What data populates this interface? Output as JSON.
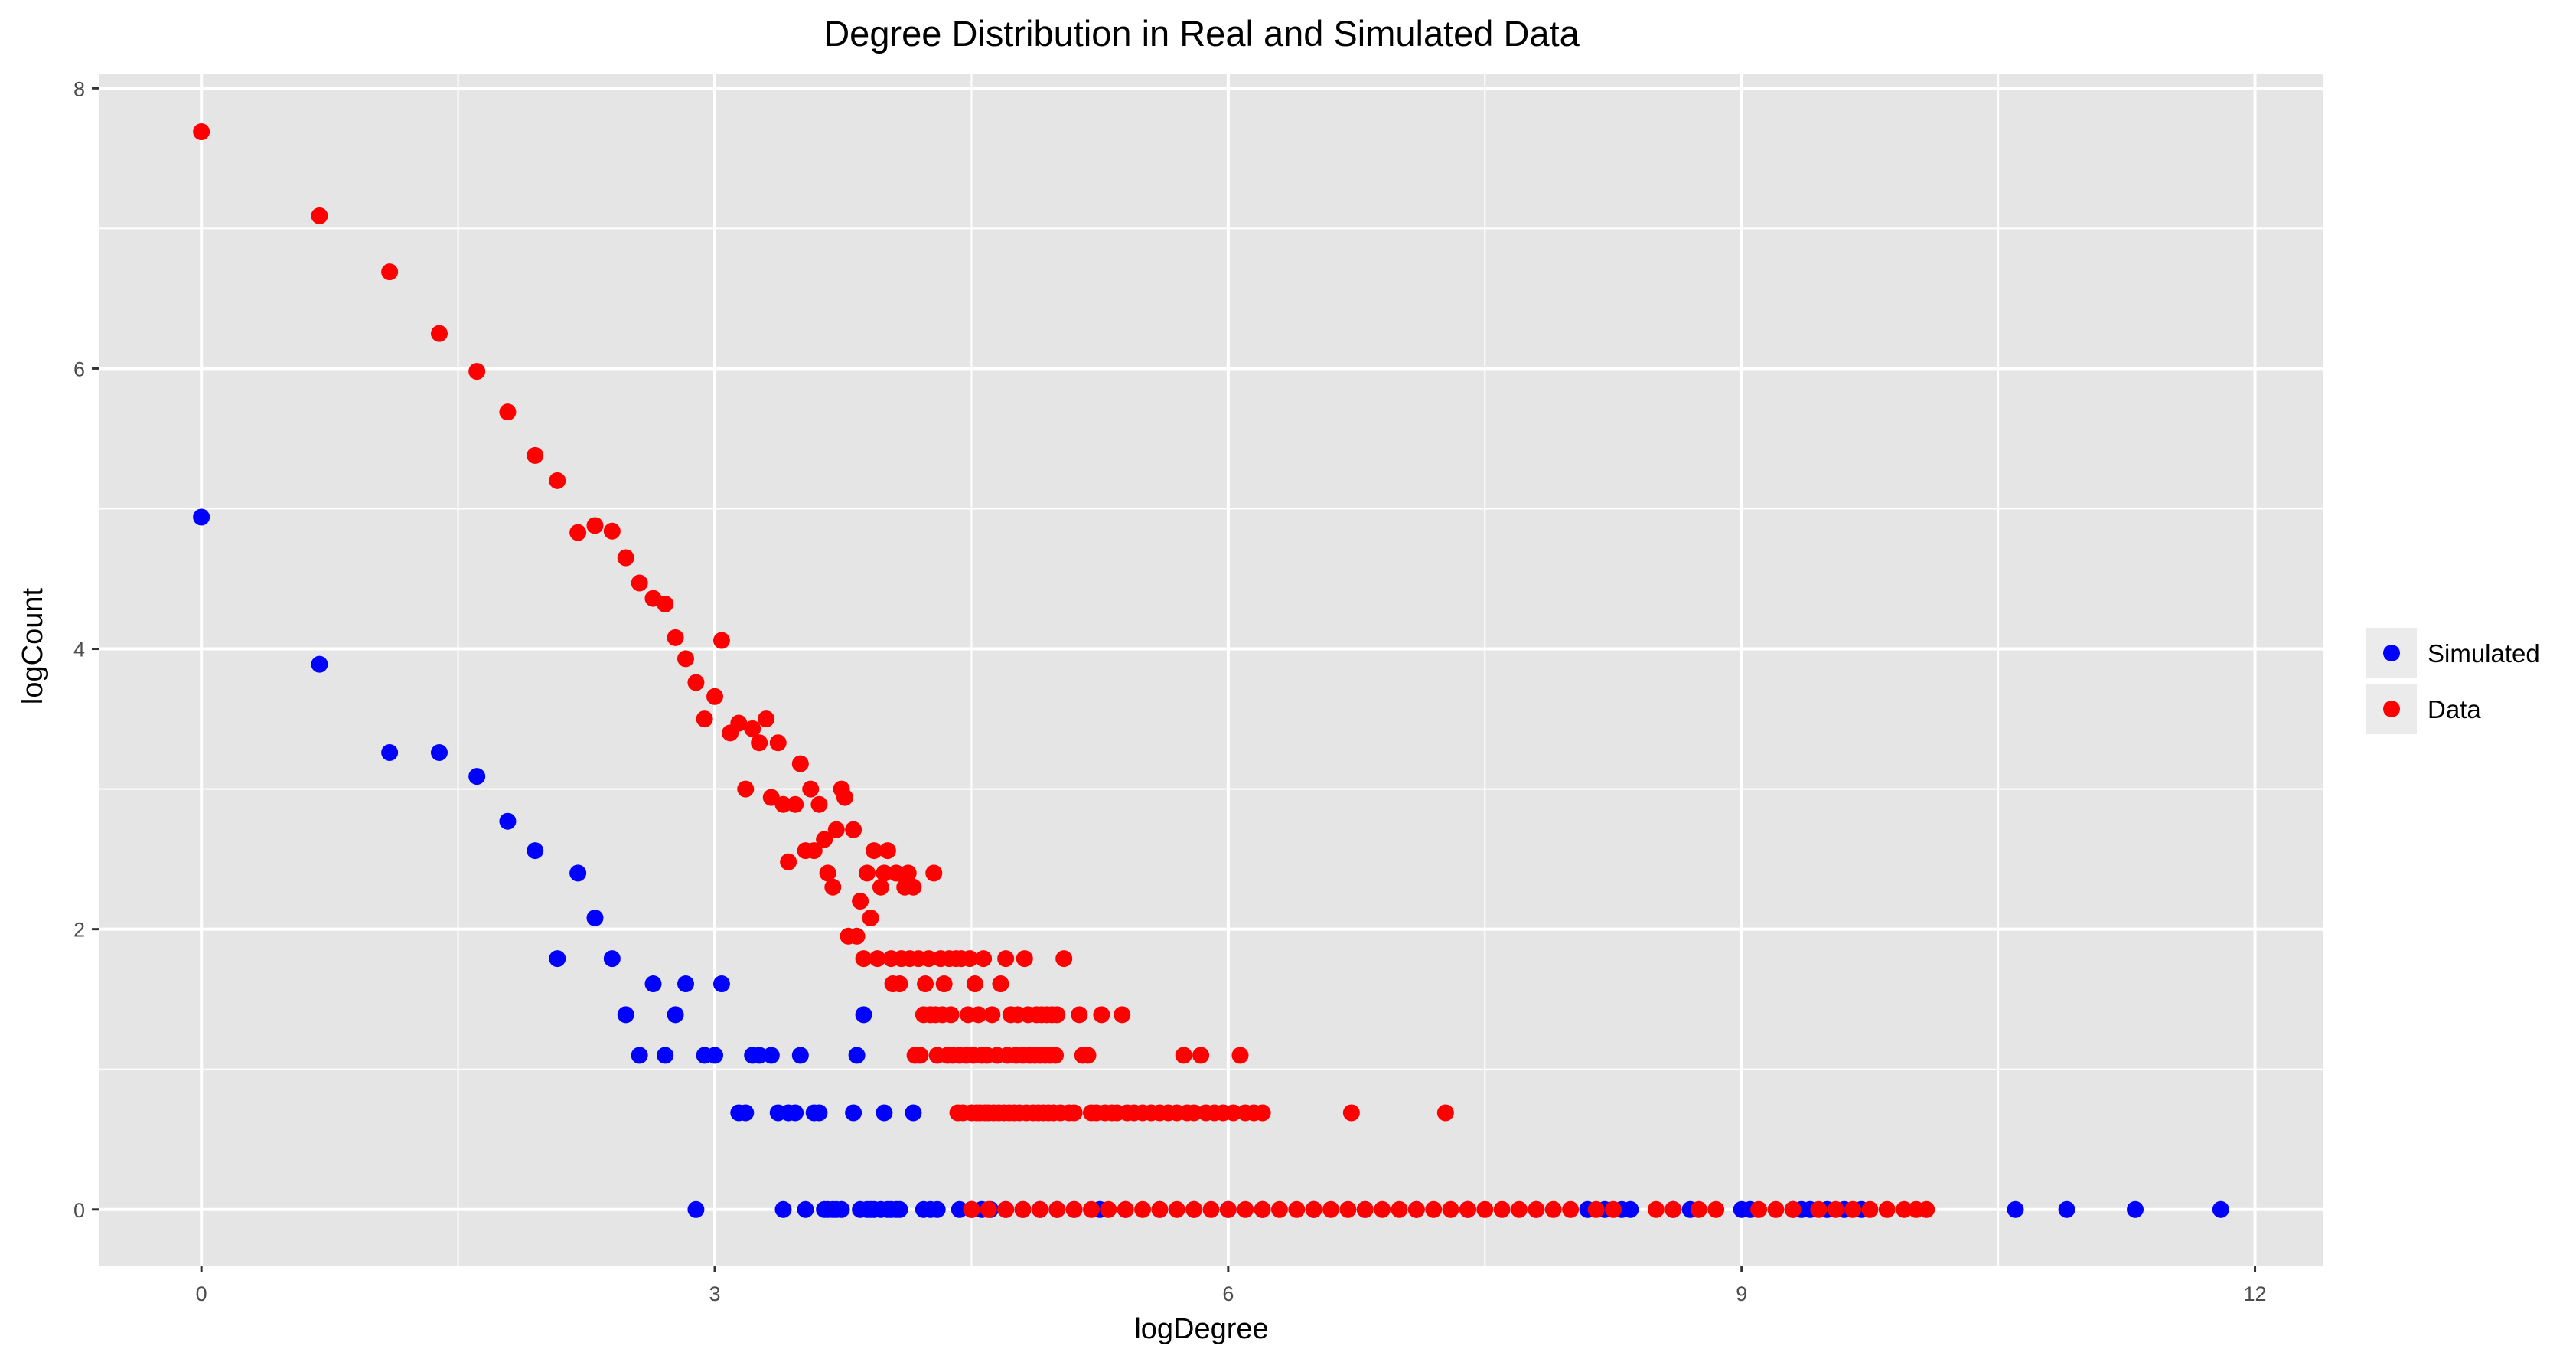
{
  "chart_data": {
    "type": "scatter",
    "title": "Degree Distribution in Real and Simulated Data",
    "xlabel": "logDegree",
    "ylabel": "logCount",
    "xlim": [
      -0.6,
      12.4
    ],
    "ylim": [
      -0.4,
      8.1
    ],
    "xticks": [
      0,
      3,
      6,
      9,
      12
    ],
    "yticks": [
      0,
      2,
      4,
      6,
      8
    ],
    "x_tick_labels": [
      "0",
      "3",
      "6",
      "9",
      "12"
    ],
    "y_tick_labels": [
      "0",
      "2",
      "4",
      "6",
      "8"
    ],
    "grid": true,
    "legend_position": "right",
    "colors": {
      "panel": "#e5e5e5",
      "grid": "#ffffff",
      "tick": "#333333"
    },
    "series": [
      {
        "name": "Simulated",
        "color": "#0000ff",
        "points": [
          [
            0,
            4.94
          ],
          [
            0.69,
            3.89
          ],
          [
            1.1,
            3.26
          ],
          [
            1.39,
            3.26
          ],
          [
            1.61,
            3.09
          ],
          [
            1.79,
            2.77
          ],
          [
            1.95,
            2.56
          ],
          [
            2.08,
            1.79
          ],
          [
            2.2,
            2.4
          ],
          [
            2.3,
            2.08
          ],
          [
            2.4,
            1.79
          ],
          [
            2.48,
            1.39
          ],
          [
            2.56,
            1.1
          ],
          [
            2.64,
            1.61
          ],
          [
            2.71,
            1.1
          ],
          [
            2.77,
            1.39
          ],
          [
            2.83,
            1.61
          ],
          [
            2.89,
            0
          ],
          [
            2.94,
            1.1
          ],
          [
            3.0,
            1.1
          ],
          [
            3.04,
            1.61
          ],
          [
            3.14,
            0.69
          ],
          [
            3.18,
            0.69
          ],
          [
            3.22,
            1.1
          ],
          [
            3.26,
            1.1
          ],
          [
            3.33,
            1.1
          ],
          [
            3.37,
            0.69
          ],
          [
            3.4,
            0
          ],
          [
            3.43,
            0.69
          ],
          [
            3.47,
            0.69
          ],
          [
            3.5,
            1.1
          ],
          [
            3.53,
            0
          ],
          [
            3.58,
            0.69
          ],
          [
            3.61,
            0.69
          ],
          [
            3.64,
            0
          ],
          [
            3.66,
            0
          ],
          [
            3.69,
            0
          ],
          [
            3.71,
            0
          ],
          [
            3.74,
            0
          ],
          [
            3.81,
            0.69
          ],
          [
            3.83,
            1.1
          ],
          [
            3.87,
            1.39
          ],
          [
            3.85,
            0
          ],
          [
            3.89,
            0
          ],
          [
            3.91,
            0
          ],
          [
            3.93,
            0
          ],
          [
            3.97,
            0
          ],
          [
            3.99,
            0.69
          ],
          [
            4.01,
            0
          ],
          [
            4.03,
            0
          ],
          [
            4.06,
            0
          ],
          [
            4.08,
            0
          ],
          [
            4.16,
            0.69
          ],
          [
            4.22,
            0
          ],
          [
            4.26,
            0
          ],
          [
            4.3,
            0
          ],
          [
            4.43,
            0
          ],
          [
            4.5,
            0
          ],
          [
            4.56,
            0
          ],
          [
            4.61,
            0
          ],
          [
            4.7,
            0
          ],
          [
            4.8,
            0
          ],
          [
            4.9,
            0
          ],
          [
            5.0,
            0
          ],
          [
            5.1,
            0
          ],
          [
            5.25,
            0
          ],
          [
            5.4,
            0
          ],
          [
            5.6,
            0
          ],
          [
            5.8,
            0
          ],
          [
            6.0,
            0
          ],
          [
            6.2,
            0
          ],
          [
            6.5,
            0
          ],
          [
            6.8,
            0
          ],
          [
            7.1,
            0
          ],
          [
            7.4,
            0
          ],
          [
            7.8,
            0
          ],
          [
            8.1,
            0
          ],
          [
            8.2,
            0
          ],
          [
            8.3,
            0
          ],
          [
            8.35,
            0
          ],
          [
            8.6,
            0
          ],
          [
            8.7,
            0
          ],
          [
            9.0,
            0
          ],
          [
            9.05,
            0
          ],
          [
            9.3,
            0
          ],
          [
            9.35,
            0
          ],
          [
            9.4,
            0
          ],
          [
            9.5,
            0
          ],
          [
            9.6,
            0
          ],
          [
            9.7,
            0
          ],
          [
            10.6,
            0
          ],
          [
            10.9,
            0
          ],
          [
            11.3,
            0
          ],
          [
            11.8,
            0
          ]
        ]
      },
      {
        "name": "Data",
        "color": "#ff0000",
        "points": [
          [
            0,
            7.69
          ],
          [
            0.69,
            7.09
          ],
          [
            1.1,
            6.69
          ],
          [
            1.39,
            6.25
          ],
          [
            1.61,
            5.98
          ],
          [
            1.79,
            5.69
          ],
          [
            1.95,
            5.38
          ],
          [
            2.08,
            5.2
          ],
          [
            2.2,
            4.83
          ],
          [
            2.3,
            4.88
          ],
          [
            2.4,
            4.84
          ],
          [
            2.48,
            4.65
          ],
          [
            2.56,
            4.47
          ],
          [
            2.64,
            4.36
          ],
          [
            2.71,
            4.32
          ],
          [
            2.77,
            4.08
          ],
          [
            2.83,
            3.93
          ],
          [
            2.89,
            3.76
          ],
          [
            2.94,
            3.5
          ],
          [
            3.0,
            3.66
          ],
          [
            3.04,
            4.06
          ],
          [
            3.09,
            3.4
          ],
          [
            3.14,
            3.47
          ],
          [
            3.18,
            3.0
          ],
          [
            3.22,
            3.43
          ],
          [
            3.26,
            3.33
          ],
          [
            3.3,
            3.5
          ],
          [
            3.33,
            2.94
          ],
          [
            3.37,
            3.33
          ],
          [
            3.4,
            2.89
          ],
          [
            3.43,
            2.48
          ],
          [
            3.47,
            2.89
          ],
          [
            3.5,
            3.18
          ],
          [
            3.53,
            2.56
          ],
          [
            3.56,
            3.0
          ],
          [
            3.58,
            2.56
          ],
          [
            3.61,
            2.89
          ],
          [
            3.64,
            2.64
          ],
          [
            3.66,
            2.4
          ],
          [
            3.69,
            2.3
          ],
          [
            3.71,
            2.71
          ],
          [
            3.74,
            3.0
          ],
          [
            3.76,
            2.94
          ],
          [
            3.78,
            1.95
          ],
          [
            3.81,
            2.71
          ],
          [
            3.83,
            1.95
          ],
          [
            3.85,
            2.2
          ],
          [
            3.87,
            1.79
          ],
          [
            3.89,
            2.4
          ],
          [
            3.91,
            2.08
          ],
          [
            3.93,
            2.56
          ],
          [
            3.95,
            1.79
          ],
          [
            3.97,
            2.3
          ],
          [
            3.99,
            2.4
          ],
          [
            4.01,
            2.56
          ],
          [
            4.03,
            1.79
          ],
          [
            4.04,
            1.61
          ],
          [
            4.06,
            2.4
          ],
          [
            4.08,
            1.61
          ],
          [
            4.09,
            1.79
          ],
          [
            4.11,
            2.3
          ],
          [
            4.13,
            2.4
          ],
          [
            4.14,
            1.79
          ],
          [
            4.16,
            2.3
          ],
          [
            4.17,
            1.1
          ],
          [
            4.19,
            1.79
          ],
          [
            4.2,
            1.1
          ],
          [
            4.22,
            1.39
          ],
          [
            4.23,
            1.61
          ],
          [
            4.25,
            1.79
          ],
          [
            4.26,
            1.39
          ],
          [
            4.28,
            2.4
          ],
          [
            4.29,
            1.39
          ],
          [
            4.3,
            1.1
          ],
          [
            4.32,
            1.79
          ],
          [
            4.33,
            1.39
          ],
          [
            4.34,
            1.61
          ],
          [
            4.36,
            1.1
          ],
          [
            4.37,
            1.79
          ],
          [
            4.38,
            1.39
          ],
          [
            4.39,
            1.1
          ],
          [
            4.41,
            1.79
          ],
          [
            4.42,
            0.69
          ],
          [
            4.43,
            1.1
          ],
          [
            4.44,
            1.79
          ],
          [
            4.45,
            0.69
          ],
          [
            4.47,
            1.1
          ],
          [
            4.48,
            1.39
          ],
          [
            4.49,
            1.79
          ],
          [
            4.5,
            0.69
          ],
          [
            4.51,
            1.1
          ],
          [
            4.52,
            1.61
          ],
          [
            4.53,
            0.69
          ],
          [
            4.54,
            1.39
          ],
          [
            4.55,
            0.69
          ],
          [
            4.56,
            1.1
          ],
          [
            4.57,
            1.79
          ],
          [
            4.58,
            0.69
          ],
          [
            4.59,
            1.1
          ],
          [
            4.6,
            0.69
          ],
          [
            4.62,
            1.39
          ],
          [
            4.63,
            0.69
          ],
          [
            4.65,
            1.1
          ],
          [
            4.66,
            0.69
          ],
          [
            4.67,
            1.61
          ],
          [
            4.69,
            0.69
          ],
          [
            4.7,
            1.79
          ],
          [
            4.71,
            1.1
          ],
          [
            4.72,
            0.69
          ],
          [
            4.73,
            1.39
          ],
          [
            4.75,
            0.69
          ],
          [
            4.76,
            1.1
          ],
          [
            4.77,
            1.39
          ],
          [
            4.78,
            0.69
          ],
          [
            4.8,
            1.1
          ],
          [
            4.81,
            1.79
          ],
          [
            4.82,
            0.69
          ],
          [
            4.83,
            1.39
          ],
          [
            4.84,
            1.1
          ],
          [
            4.86,
            0.69
          ],
          [
            4.87,
            1.1
          ],
          [
            4.88,
            1.39
          ],
          [
            4.89,
            0.69
          ],
          [
            4.9,
            1.1
          ],
          [
            4.91,
            1.39
          ],
          [
            4.92,
            0.69
          ],
          [
            4.93,
            1.1
          ],
          [
            4.94,
            1.39
          ],
          [
            4.95,
            0.69
          ],
          [
            4.96,
            1.1
          ],
          [
            4.97,
            1.39
          ],
          [
            4.98,
            0.69
          ],
          [
            4.99,
            1.1
          ],
          [
            5.0,
            1.39
          ],
          [
            5.02,
            0.69
          ],
          [
            5.04,
            1.79
          ],
          [
            5.07,
            0.69
          ],
          [
            5.1,
            0.69
          ],
          [
            5.13,
            1.39
          ],
          [
            5.15,
            1.1
          ],
          [
            5.18,
            1.1
          ],
          [
            5.2,
            0.69
          ],
          [
            5.23,
            0.69
          ],
          [
            5.26,
            1.39
          ],
          [
            5.28,
            0.69
          ],
          [
            5.32,
            0.69
          ],
          [
            5.35,
            0.69
          ],
          [
            5.38,
            1.39
          ],
          [
            5.41,
            0.69
          ],
          [
            5.45,
            0.69
          ],
          [
            5.5,
            0.69
          ],
          [
            5.55,
            0.69
          ],
          [
            5.6,
            0.69
          ],
          [
            5.65,
            0.69
          ],
          [
            5.7,
            0.69
          ],
          [
            5.74,
            1.1
          ],
          [
            5.76,
            0.69
          ],
          [
            5.8,
            0.69
          ],
          [
            5.84,
            1.1
          ],
          [
            5.87,
            0.69
          ],
          [
            5.92,
            0.69
          ],
          [
            5.97,
            0.69
          ],
          [
            6.03,
            0.69
          ],
          [
            6.07,
            1.1
          ],
          [
            6.1,
            0.69
          ],
          [
            6.15,
            0.69
          ],
          [
            6.2,
            0.69
          ],
          [
            6.72,
            0.69
          ],
          [
            7.27,
            0.69
          ],
          [
            4.5,
            0
          ],
          [
            4.6,
            0
          ],
          [
            4.7,
            0
          ],
          [
            4.8,
            0
          ],
          [
            4.9,
            0
          ],
          [
            5.0,
            0
          ],
          [
            5.1,
            0
          ],
          [
            5.2,
            0
          ],
          [
            5.3,
            0
          ],
          [
            5.4,
            0
          ],
          [
            5.5,
            0
          ],
          [
            5.6,
            0
          ],
          [
            5.7,
            0
          ],
          [
            5.8,
            0
          ],
          [
            5.9,
            0
          ],
          [
            6.0,
            0
          ],
          [
            6.1,
            0
          ],
          [
            6.2,
            0
          ],
          [
            6.3,
            0
          ],
          [
            6.4,
            0
          ],
          [
            6.5,
            0
          ],
          [
            6.6,
            0
          ],
          [
            6.7,
            0
          ],
          [
            6.8,
            0
          ],
          [
            6.9,
            0
          ],
          [
            7.0,
            0
          ],
          [
            7.1,
            0
          ],
          [
            7.2,
            0
          ],
          [
            7.3,
            0
          ],
          [
            7.4,
            0
          ],
          [
            7.5,
            0
          ],
          [
            7.6,
            0
          ],
          [
            7.7,
            0
          ],
          [
            7.8,
            0
          ],
          [
            7.9,
            0
          ],
          [
            8.0,
            0
          ],
          [
            8.15,
            0
          ],
          [
            8.25,
            0
          ],
          [
            8.5,
            0
          ],
          [
            8.6,
            0
          ],
          [
            8.75,
            0
          ],
          [
            8.85,
            0
          ],
          [
            9.1,
            0
          ],
          [
            9.2,
            0
          ],
          [
            9.3,
            0
          ],
          [
            9.45,
            0
          ],
          [
            9.55,
            0
          ],
          [
            9.65,
            0
          ],
          [
            9.75,
            0
          ],
          [
            9.85,
            0
          ],
          [
            9.95,
            0
          ],
          [
            10.02,
            0
          ],
          [
            10.08,
            0
          ]
        ]
      }
    ]
  }
}
